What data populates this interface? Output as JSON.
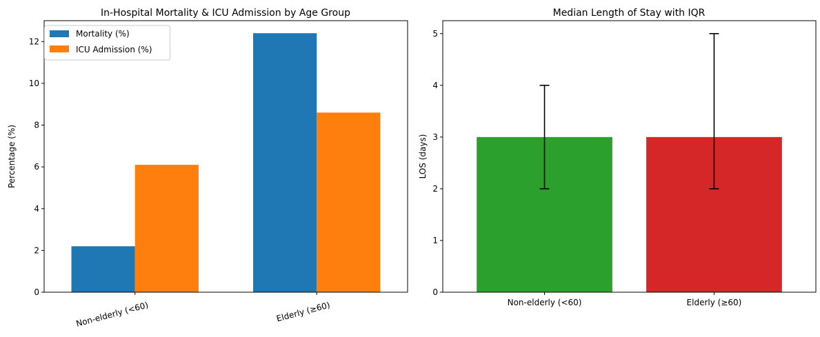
{
  "chart_data": [
    {
      "type": "bar",
      "title": "In-Hospital Mortality & ICU Admission by Age Group",
      "xlabel": "",
      "ylabel": "Percentage (%)",
      "categories": [
        "Non-elderly (<60)",
        "Elderly (≥60)"
      ],
      "series": [
        {
          "name": "Mortality (%)",
          "values": [
            2.2,
            12.4
          ],
          "color": "#1f77b4"
        },
        {
          "name": "ICU Admission (%)",
          "values": [
            6.1,
            8.6
          ],
          "color": "#ff7f0e"
        }
      ],
      "ylim": [
        0,
        13.0
      ],
      "yticks": [
        0,
        2,
        4,
        6,
        8,
        10,
        12
      ],
      "legend": "top-left",
      "grid": false,
      "xtick_rotation": 15
    },
    {
      "type": "bar",
      "title": "Median Length of Stay with IQR",
      "xlabel": "",
      "ylabel": "LOS (days)",
      "categories": [
        "Non-elderly (<60)",
        "Elderly (≥60)"
      ],
      "values": [
        3,
        3
      ],
      "iqr_low": [
        2,
        2
      ],
      "iqr_high": [
        4,
        5
      ],
      "colors": [
        "#2ca02c",
        "#d62728"
      ],
      "ylim": [
        0,
        5.25
      ],
      "yticks": [
        0,
        1,
        2,
        3,
        4,
        5
      ],
      "grid": false
    }
  ]
}
